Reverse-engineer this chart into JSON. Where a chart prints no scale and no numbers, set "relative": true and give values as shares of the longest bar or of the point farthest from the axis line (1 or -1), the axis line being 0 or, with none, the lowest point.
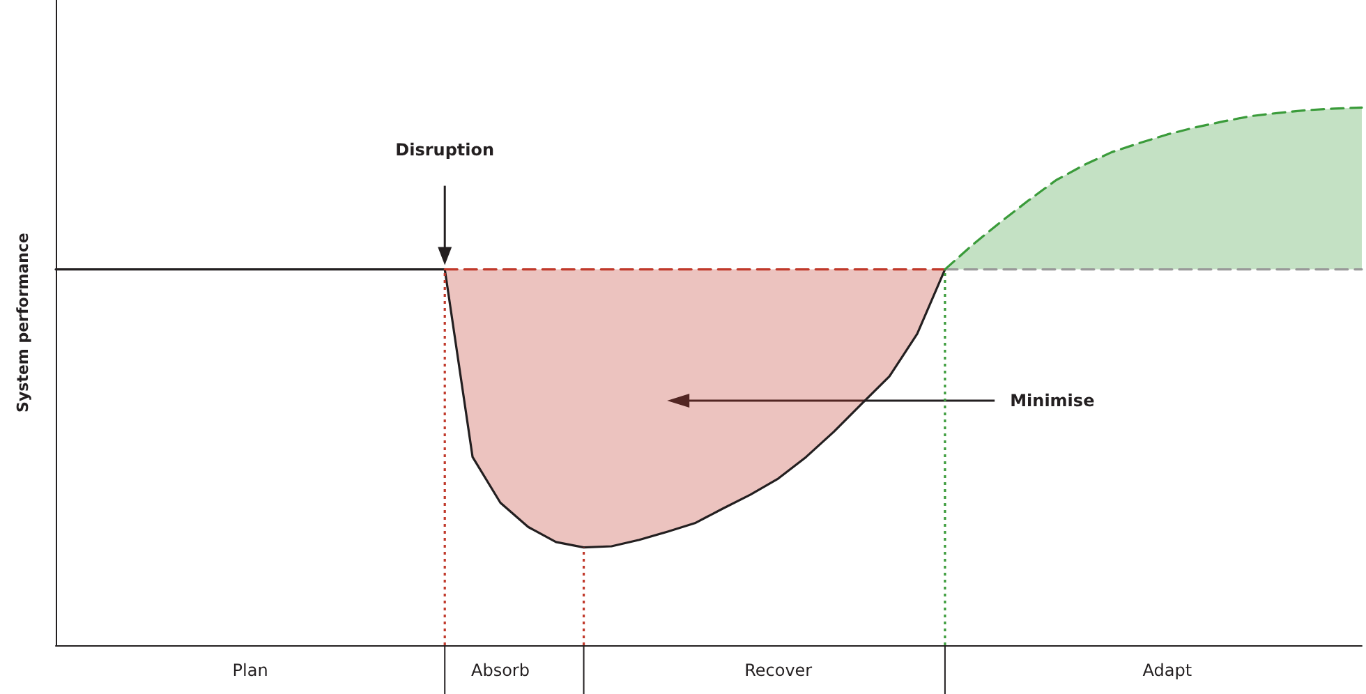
{
  "chart_data": {
    "type": "line",
    "relative": true,
    "ylabel": "System performance",
    "grid": false,
    "marker": "none",
    "categories": [
      null,
      null,
      null,
      null,
      null,
      null,
      null,
      "Plan",
      null,
      null,
      null,
      null,
      null,
      null,
      null,
      null,
      "Absorb",
      null,
      null,
      null,
      null,
      null,
      null,
      null,
      null,
      null,
      "Recover",
      null,
      null,
      null,
      null,
      null,
      null,
      null,
      null,
      null,
      null,
      null,
      null,
      null,
      "Adapt",
      null,
      null,
      null,
      null,
      null,
      null,
      null
    ],
    "series": [
      {
        "color": "#231f20",
        "line_style": "solid",
        "values": [
          0.699,
          0.699,
          0.699,
          0.699,
          0.699,
          0.699,
          0.699,
          0.699,
          0.699,
          0.699,
          0.699,
          0.699,
          0.699,
          0.699,
          0.699,
          null,
          null,
          null,
          null,
          null,
          null,
          null,
          null,
          null,
          null,
          null,
          null,
          null,
          null,
          null,
          null,
          null,
          null,
          null,
          null,
          null,
          null,
          null,
          null,
          null,
          null,
          null,
          null,
          null,
          null,
          null,
          null,
          null
        ]
      },
      {
        "color": "#231f20",
        "line_style": "solid",
        "values": [
          null,
          null,
          null,
          null,
          null,
          null,
          null,
          null,
          null,
          null,
          null,
          null,
          null,
          null,
          0.699,
          0.35,
          0.265,
          0.22,
          0.192,
          0.182,
          0.184,
          0.196,
          0.211,
          0.227,
          0.254,
          0.28,
          0.31,
          0.35,
          0.397,
          0.449,
          0.5,
          0.579,
          0.699,
          null,
          null,
          null,
          null,
          null,
          null,
          null,
          null,
          null,
          null,
          null,
          null,
          null,
          null,
          null
        ]
      },
      {
        "color": "#c0392b",
        "line_style": "dashed",
        "values": [
          null,
          null,
          null,
          null,
          null,
          null,
          null,
          null,
          null,
          null,
          null,
          null,
          null,
          null,
          0.699,
          0.699,
          0.699,
          0.699,
          0.699,
          0.699,
          0.699,
          0.699,
          0.699,
          0.699,
          0.699,
          0.699,
          0.699,
          0.699,
          0.699,
          0.699,
          0.699,
          0.699,
          0.699,
          null,
          null,
          null,
          null,
          null,
          null,
          null,
          null,
          null,
          null,
          null,
          null,
          null,
          null,
          null
        ],
        "lower": [
          null,
          null,
          null,
          null,
          null,
          null,
          null,
          null,
          null,
          null,
          null,
          null,
          null,
          null,
          0.699,
          0.35,
          0.265,
          0.22,
          0.192,
          0.182,
          0.184,
          0.196,
          0.211,
          0.227,
          0.254,
          0.28,
          0.31,
          0.35,
          0.397,
          0.449,
          0.5,
          0.579,
          0.699,
          null,
          null,
          null,
          null,
          null,
          null,
          null,
          null,
          null,
          null,
          null,
          null,
          null,
          null,
          null
        ],
        "upper": [
          null,
          null,
          null,
          null,
          null,
          null,
          null,
          null,
          null,
          null,
          null,
          null,
          null,
          null,
          0.699,
          0.699,
          0.699,
          0.699,
          0.699,
          0.699,
          0.699,
          0.699,
          0.699,
          0.699,
          0.699,
          0.699,
          0.699,
          0.699,
          0.699,
          0.699,
          0.699,
          0.699,
          0.699,
          null,
          null,
          null,
          null,
          null,
          null,
          null,
          null,
          null,
          null,
          null,
          null,
          null,
          null,
          null
        ]
      },
      {
        "color": "#999999",
        "line_style": "dashed",
        "values": [
          null,
          null,
          null,
          null,
          null,
          null,
          null,
          null,
          null,
          null,
          null,
          null,
          null,
          null,
          null,
          null,
          null,
          null,
          null,
          null,
          null,
          null,
          null,
          null,
          null,
          null,
          null,
          null,
          null,
          null,
          null,
          null,
          0.699,
          0.699,
          0.699,
          0.699,
          0.699,
          0.699,
          0.699,
          0.699,
          0.699,
          0.699,
          0.699,
          0.699,
          0.699,
          0.699,
          0.699,
          0.699
        ]
      },
      {
        "color": "#3a9b3a",
        "line_style": "dashed",
        "values": [
          null,
          null,
          null,
          null,
          null,
          null,
          null,
          null,
          null,
          null,
          null,
          null,
          null,
          null,
          null,
          null,
          null,
          null,
          null,
          null,
          null,
          null,
          null,
          null,
          null,
          null,
          null,
          null,
          null,
          null,
          null,
          null,
          0.699,
          0.745,
          0.787,
          0.827,
          0.865,
          0.893,
          0.917,
          0.934,
          0.95,
          0.963,
          0.974,
          0.984,
          0.99,
          0.995,
          0.998,
          1
        ],
        "lower": [
          null,
          null,
          null,
          null,
          null,
          null,
          null,
          null,
          null,
          null,
          null,
          null,
          null,
          null,
          null,
          null,
          null,
          null,
          null,
          null,
          null,
          null,
          null,
          null,
          null,
          null,
          null,
          null,
          null,
          null,
          null,
          null,
          0.699,
          0.699,
          0.699,
          0.699,
          0.699,
          0.699,
          0.699,
          0.699,
          0.699,
          0.699,
          0.699,
          0.699,
          0.699,
          0.699,
          0.699,
          0.699
        ],
        "upper": [
          null,
          null,
          null,
          null,
          null,
          null,
          null,
          null,
          null,
          null,
          null,
          null,
          null,
          null,
          null,
          null,
          null,
          null,
          null,
          null,
          null,
          null,
          null,
          null,
          null,
          null,
          null,
          null,
          null,
          null,
          null,
          null,
          0.699,
          0.745,
          0.787,
          0.827,
          0.865,
          0.893,
          0.917,
          0.934,
          0.95,
          0.963,
          0.974,
          0.984,
          0.99,
          0.995,
          0.998,
          1
        ]
      }
    ],
    "annotations": [
      "Disruption",
      "Minimise"
    ]
  }
}
